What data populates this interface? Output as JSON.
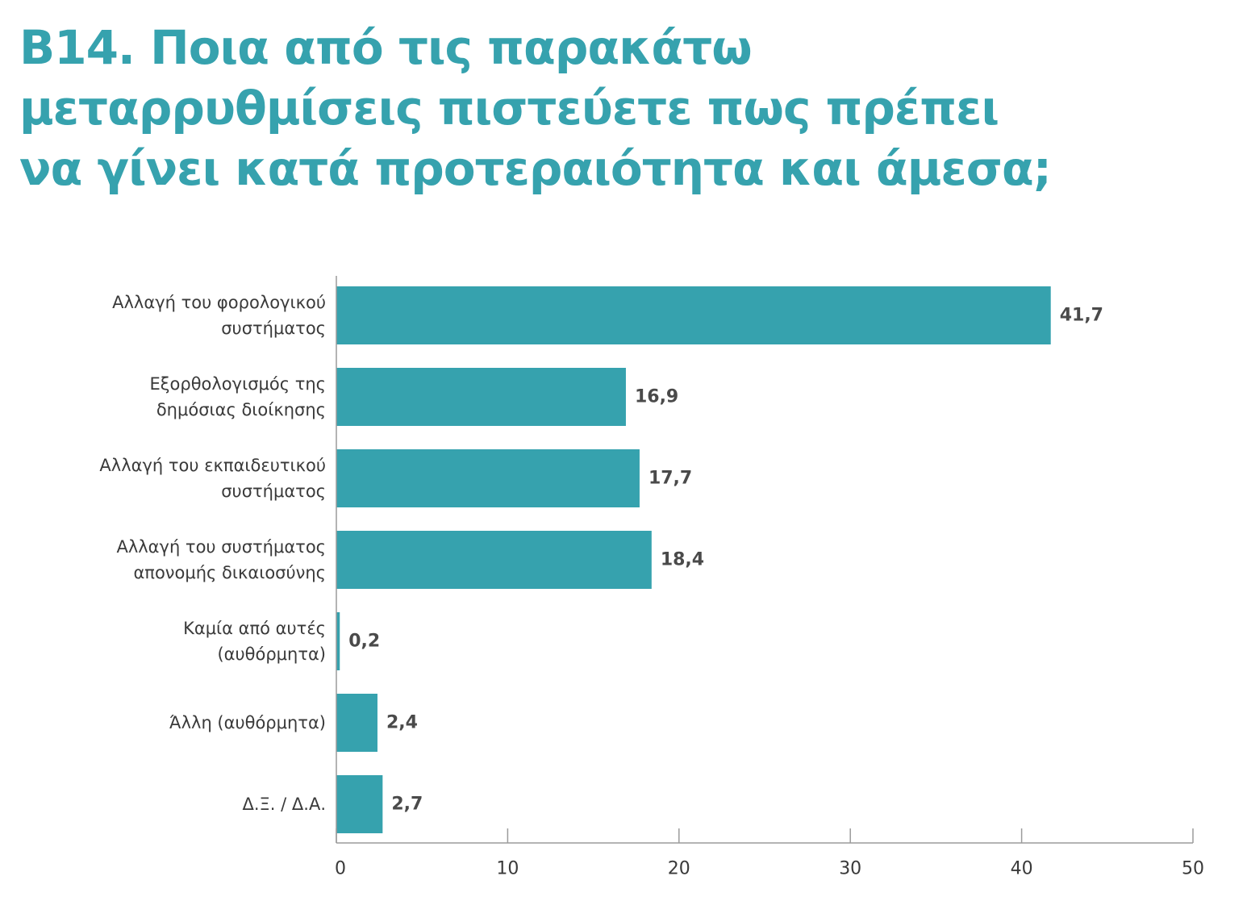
{
  "colors": {
    "accent": "#36a2ae",
    "axis": "#9b9b9b",
    "text": "#3a3a3a",
    "value_text": "#4a4a4a"
  },
  "chart_data": {
    "type": "bar",
    "orientation": "horizontal",
    "title_lines": [
      "B14. Ποια από τις παρακάτω",
      "μεταρρυθμίσεις πιστεύετε πως πρέπει",
      "να γίνει κατά προτεραιότητα και άμεσα;"
    ],
    "categories": [
      [
        "Αλλαγή του φορολογικού",
        "συστήματος"
      ],
      [
        "Εξορθολογισμός της",
        "δημόσιας διοίκησης"
      ],
      [
        "Αλλαγή του εκπαιδευτικού",
        "συστήματος"
      ],
      [
        "Αλλαγή του συστήματος",
        "απονομής δικαιοσύνης"
      ],
      [
        "Καμία από αυτές",
        "(αυθόρμητα)"
      ],
      [
        "Άλλη (αυθόρμητα)"
      ],
      [
        "Δ.Ξ. / Δ.Α."
      ]
    ],
    "values": [
      41.7,
      16.9,
      17.7,
      18.4,
      0.2,
      2.4,
      2.7
    ],
    "value_labels": [
      "41,7",
      "16,9",
      "17,7",
      "18,4",
      "0,2",
      "2,4",
      "2,7"
    ],
    "xlim": [
      0,
      50
    ],
    "xticks": [
      0,
      10,
      20,
      30,
      40,
      50
    ],
    "xtick_labels": [
      "0",
      "10",
      "20",
      "30",
      "40",
      "50"
    ],
    "grid": false,
    "legend": "none"
  }
}
